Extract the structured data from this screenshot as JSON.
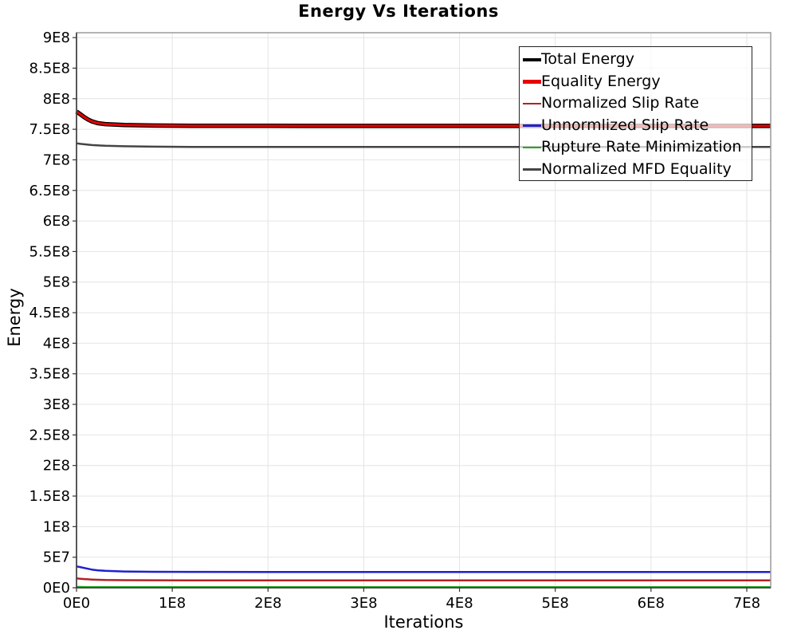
{
  "title": "Energy Vs Iterations",
  "chart_data": {
    "type": "line",
    "title": "Energy Vs Iterations",
    "xlabel": "Iterations",
    "ylabel": "Energy",
    "xlim": [
      0,
      725000000.0
    ],
    "ylim": [
      0,
      908000000.0
    ],
    "grid": true,
    "legend_position": "top-right",
    "x_tick_values": [
      0,
      100000000.0,
      200000000.0,
      300000000.0,
      400000000.0,
      500000000.0,
      600000000.0,
      700000000.0
    ],
    "x_tick_labels": [
      "0E0",
      "1E8",
      "2E8",
      "3E8",
      "4E8",
      "5E8",
      "6E8",
      "7E8"
    ],
    "y_tick_values": [
      0,
      50000000.0,
      100000000.0,
      150000000.0,
      200000000.0,
      250000000.0,
      300000000.0,
      350000000.0,
      400000000.0,
      450000000.0,
      500000000.0,
      550000000.0,
      600000000.0,
      650000000.0,
      700000000.0,
      750000000.0,
      800000000.0,
      850000000.0,
      900000000.0
    ],
    "y_tick_labels": [
      "0E0",
      "5E7",
      "1E8",
      "1.5E8",
      "2E8",
      "2.5E8",
      "3E8",
      "3.5E8",
      "4E8",
      "4.5E8",
      "5E8",
      "5.5E8",
      "6E8",
      "6.5E8",
      "7E8",
      "7.5E8",
      "8E8",
      "8.5E8",
      "9E8"
    ],
    "x": [
      0,
      4000000.0,
      8000000.0,
      12000000.0,
      16000000.0,
      22000000.0,
      30000000.0,
      50000000.0,
      80000000.0,
      120000000.0,
      200000000.0,
      300000000.0,
      400000000.0,
      500000000.0,
      600000000.0,
      700000000.0,
      725000000.0
    ],
    "series": [
      {
        "name": "Normalized MFD Equality",
        "color": "#454545",
        "line_width": 2.5,
        "legend_swatch_height": 2.5,
        "y": [
          727000000.0,
          726200000.0,
          725500000.0,
          724800000.0,
          724200000.0,
          723600000.0,
          723000000.0,
          722200000.0,
          721600000.0,
          721200000.0,
          721000000.0,
          721000000.0,
          721000000.0,
          721000000.0,
          721000000.0,
          721000000.0,
          721000000.0
        ]
      },
      {
        "name": "Rupture Rate Minimization",
        "color": "#22aa22",
        "line_width": 2.5,
        "legend_swatch_height": 2.5,
        "y": [
          1500000.0,
          1300000.0,
          1200000.0,
          1100000.0,
          1000000.0,
          1000000.0,
          1000000.0,
          1000000.0,
          1000000.0,
          1000000.0,
          1000000.0,
          1000000.0,
          1000000.0,
          1000000.0,
          1000000.0,
          1000000.0,
          1000000.0
        ]
      },
      {
        "name": "Unnormlized Slip Rate",
        "color": "#2121cc",
        "line_width": 2.5,
        "legend_swatch_height": 2.5,
        "y": [
          35000000.0,
          33800000.0,
          32400000.0,
          31000000.0,
          29800000.0,
          28600000.0,
          27600000.0,
          26600000.0,
          26100000.0,
          25900000.0,
          25800000.0,
          25700000.0,
          25700000.0,
          25700000.0,
          25700000.0,
          25700000.0,
          25700000.0
        ]
      },
      {
        "name": "Normalized Slip Rate",
        "color": "#b22222",
        "line_width": 2.5,
        "legend_swatch_height": 2.5,
        "y": [
          15200000.0,
          14700000.0,
          14200000.0,
          13800000.0,
          13400000.0,
          13000000.0,
          12700000.0,
          12400000.0,
          12200000.0,
          12100000.0,
          12000000.0,
          12000000.0,
          12000000.0,
          12000000.0,
          12000000.0,
          12000000.0,
          12000000.0
        ]
      },
      {
        "name": "Total Energy",
        "color": "#000000",
        "line_width": 5.5,
        "legend_swatch_height": 4.5,
        "y": [
          779000000.0,
          774500000.0,
          770000000.0,
          766000000.0,
          763000000.0,
          760000000.0,
          758500000.0,
          757000000.0,
          756200000.0,
          755800000.0,
          755600000.0,
          755500000.0,
          755500000.0,
          755500000.0,
          755500000.0,
          755500000.0,
          755500000.0
        ]
      },
      {
        "name": "Equality Energy",
        "color": "#e80000",
        "line_width": 3,
        "legend_swatch_height": 4.5,
        "y": [
          779000000.0,
          774500000.0,
          770000000.0,
          766000000.0,
          763000000.0,
          760000000.0,
          758500000.0,
          757000000.0,
          756200000.0,
          755800000.0,
          755600000.0,
          755500000.0,
          755500000.0,
          755500000.0,
          755500000.0,
          755500000.0,
          755500000.0
        ]
      }
    ],
    "legend_order": [
      "Total Energy",
      "Equality Energy",
      "Normalized Slip Rate",
      "Unnormlized Slip Rate",
      "Rupture Rate Minimization",
      "Normalized MFD Equality"
    ]
  }
}
